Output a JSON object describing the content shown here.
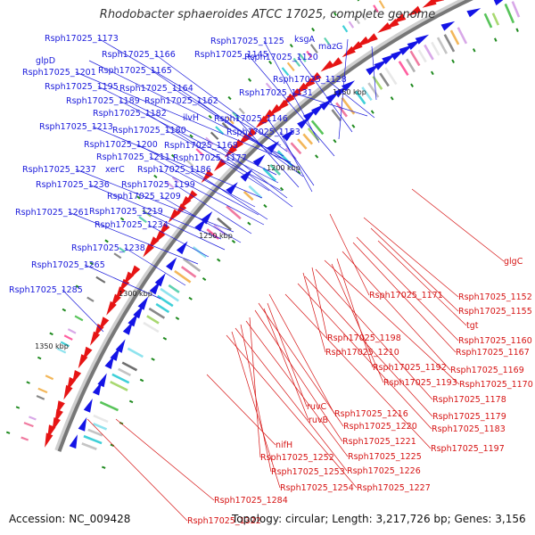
{
  "title": "Rhodobacter sphaeroides ATCC 17025, complete genome",
  "footer": {
    "accession": "Accession: NC_009428",
    "summary": "Topology: circular; Length: 3,217,726 bp; Genes: 3,156"
  },
  "colors": {
    "forward": "#1414e6",
    "reverse": "#e61414",
    "backbone": "#777777",
    "blue_label": "#1a1adb",
    "red_label": "#d61414",
    "tick": "#1f8a1f"
  },
  "kbp_labels": [
    "1150 kbp",
    "1200 kbp",
    "1250 kbp",
    "1300 kbp",
    "1350 kbp"
  ],
  "forward_labels": [
    "Rsph17025_1173",
    "Rsph17025_1166",
    "glpD",
    "Rsph17025_1201",
    "Rsph17025_1165",
    "Rsph17025_1195",
    "Rsph17025_1164",
    "Rsph17025_1189",
    "Rsph17025_1162",
    "Rsph17025_1182",
    "Rsph17025_1213",
    "Rsph17025_1180",
    "Rsph17025_1200",
    "Rsph17025_1168",
    "Rsph17025_1211",
    "Rsph17025_1177",
    "Rsph17025_1237",
    "xerC",
    "Rsph17025_1186",
    "Rsph17025_1236",
    "Rsph17025_1199",
    "Rsph17025_1209",
    "Rsph17025_1234",
    "Rsph17025_1261",
    "Rsph17025_1219",
    "Rsph17025_1238",
    "Rsph17025_1265",
    "Rsph17025_1285",
    "Rsph17025_1125",
    "ksgA",
    "mazG",
    "Rsph17025_1145",
    "Rsph17025_1120",
    "Rsph17025_1128",
    "Rsph17025_1131",
    "ilvH",
    "Rsph17025_1146",
    "Rsph17025_1153"
  ],
  "reverse_labels": [
    "glgC",
    "Rsph17025_1171",
    "Rsph17025_1152",
    "Rsph17025_1155",
    "tgt",
    "Rsph17025_1160",
    "Rsph17025_1198",
    "Rsph17025_1167",
    "Rsph17025_1210",
    "Rsph17025_1169",
    "Rsph17025_1192",
    "Rsph17025_1193",
    "Rsph17025_1170",
    "Rsph17025_1178",
    "Rsph17025_1179",
    "Rsph17025_1216",
    "Rsph17025_1183",
    "ruvC",
    "Rsph17025_1220",
    "ruvB",
    "Rsph17025_1221",
    "nifH",
    "Rsph17025_1197",
    "Rsph17025_1252",
    "Rsph17025_1225",
    "Rsph17025_1253",
    "Rsph17025_1226",
    "Rsph17025_1254",
    "Rsph17025_1227",
    "Rsph17025_1284",
    "Rsph17025_1322"
  ]
}
